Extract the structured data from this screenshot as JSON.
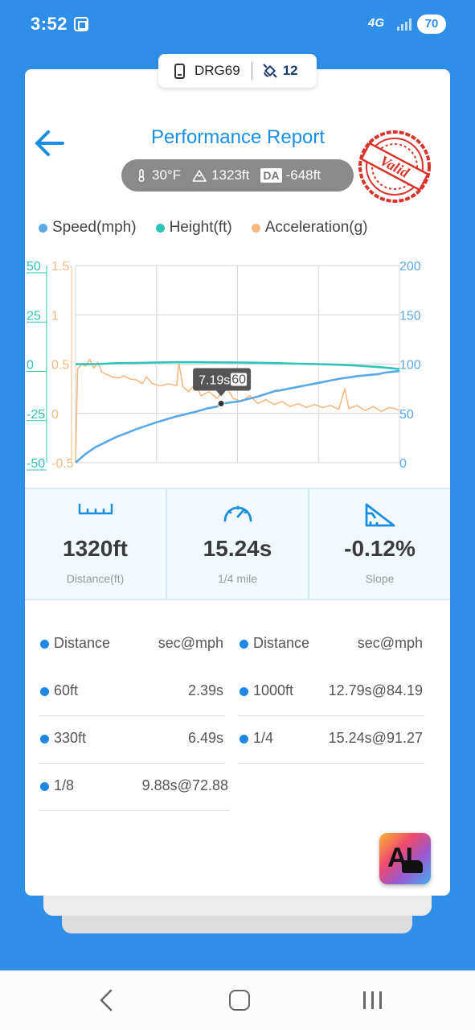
{
  "status_bar": {
    "time": "3:52",
    "network": "4G",
    "battery": "70"
  },
  "device": {
    "name": "DRG69",
    "satellites": "12"
  },
  "header": {
    "title": "Performance Report",
    "temperature": "30°F",
    "elevation": "1323ft",
    "da_label": "DA",
    "density_altitude": "-648ft",
    "stamp_text": "Valid"
  },
  "legend": [
    {
      "label": "Speed(mph)",
      "color": "#5aa9e6"
    },
    {
      "label": "Height(ft)",
      "color": "#2ec4b6"
    },
    {
      "label": "Acceleration(g)",
      "color": "#f5b982"
    }
  ],
  "chart_data": {
    "type": "line",
    "x": {
      "domain": [
        0,
        16
      ]
    },
    "y_axes": {
      "height_ticks": [
        "50",
        "25",
        "0",
        "-25",
        "-50"
      ],
      "height_ylim": [
        -50,
        50
      ],
      "accel_ticks": [
        "1.5",
        "1",
        "0.5",
        "0",
        "-0.5"
      ],
      "accel_ylim": [
        -0.5,
        1.5
      ],
      "speed_ticks": [
        "200",
        "150",
        "100",
        "50",
        "0"
      ],
      "speed_ylim": [
        0,
        200
      ]
    },
    "grid": true,
    "tooltip": {
      "time": "7.19s",
      "value": "60",
      "x": 7.19,
      "y_speed": 60
    },
    "series": [
      {
        "name": "Speed(mph)",
        "axis": "speed",
        "color": "#5aa9e6",
        "points": [
          [
            0,
            0
          ],
          [
            0.5,
            9
          ],
          [
            1,
            16
          ],
          [
            2,
            26
          ],
          [
            2.39,
            29
          ],
          [
            3,
            34
          ],
          [
            4,
            41
          ],
          [
            5,
            47
          ],
          [
            6,
            52
          ],
          [
            6.49,
            55
          ],
          [
            7,
            57
          ],
          [
            7.19,
            60
          ],
          [
            8,
            62
          ],
          [
            9,
            67
          ],
          [
            9.88,
            72.88
          ],
          [
            10,
            73
          ],
          [
            11,
            77
          ],
          [
            12,
            81
          ],
          [
            12.79,
            84.19
          ],
          [
            13,
            85
          ],
          [
            14,
            88
          ],
          [
            15,
            90
          ],
          [
            15.24,
            91.27
          ],
          [
            16,
            93
          ]
        ]
      },
      {
        "name": "Height(ft)",
        "axis": "height",
        "color": "#2ec4b6",
        "points": [
          [
            0,
            0
          ],
          [
            1,
            0
          ],
          [
            2,
            0.5
          ],
          [
            3,
            0.6
          ],
          [
            4,
            0.8
          ],
          [
            5,
            1
          ],
          [
            6,
            1
          ],
          [
            7,
            0.9
          ],
          [
            8,
            0.8
          ],
          [
            9,
            0.7
          ],
          [
            10,
            0.5
          ],
          [
            11,
            0.2
          ],
          [
            12,
            0
          ],
          [
            13,
            -0.3
          ],
          [
            14,
            -0.8
          ],
          [
            15,
            -1.5
          ],
          [
            16,
            -2.5
          ]
        ]
      },
      {
        "name": "Acceleration(g)",
        "axis": "accel",
        "color": "#f5b982",
        "points": [
          [
            0,
            -0.5
          ],
          [
            0.1,
            0.45
          ],
          [
            0.3,
            0.5
          ],
          [
            0.5,
            0.48
          ],
          [
            0.7,
            0.55
          ],
          [
            0.9,
            0.46
          ],
          [
            1.1,
            0.52
          ],
          [
            1.3,
            0.42
          ],
          [
            1.5,
            0.4
          ],
          [
            1.8,
            0.37
          ],
          [
            2.1,
            0.36
          ],
          [
            2.4,
            0.38
          ],
          [
            2.7,
            0.35
          ],
          [
            3,
            0.34
          ],
          [
            3.3,
            0.3
          ],
          [
            3.5,
            0.37
          ],
          [
            3.8,
            0.3
          ],
          [
            4.2,
            0.28
          ],
          [
            4.6,
            0.3
          ],
          [
            5,
            0.28
          ],
          [
            5.1,
            0.52
          ],
          [
            5.3,
            0.27
          ],
          [
            5.6,
            0.22
          ],
          [
            5.9,
            0.3
          ],
          [
            6.2,
            0.18
          ],
          [
            6.6,
            0.22
          ],
          [
            7,
            0.15
          ],
          [
            7.4,
            0.28
          ],
          [
            7.8,
            0.15
          ],
          [
            8.2,
            0.12
          ],
          [
            8.6,
            0.18
          ],
          [
            9,
            0.1
          ],
          [
            9.4,
            0.14
          ],
          [
            9.8,
            0.09
          ],
          [
            10.2,
            0.12
          ],
          [
            10.6,
            0.07
          ],
          [
            11,
            0.1
          ],
          [
            11.4,
            0.06
          ],
          [
            11.8,
            0.09
          ],
          [
            12.2,
            0.06
          ],
          [
            12.6,
            0.08
          ],
          [
            13,
            0.04
          ],
          [
            13.3,
            0.25
          ],
          [
            13.5,
            0.05
          ],
          [
            13.9,
            0.08
          ],
          [
            14.3,
            0.03
          ],
          [
            14.7,
            0.07
          ],
          [
            15.1,
            0.02
          ],
          [
            15.5,
            0.06
          ],
          [
            15.9,
            0.04
          ],
          [
            16,
            0.03
          ]
        ]
      }
    ]
  },
  "stats": [
    {
      "value": "1320ft",
      "label": "Distance(ft)",
      "icon": "ruler-icon"
    },
    {
      "value": "15.24s",
      "label": "1/4 mile",
      "icon": "speedometer-icon"
    },
    {
      "value": "-0.12%",
      "label": "Slope",
      "icon": "slope-icon"
    }
  ],
  "results": {
    "header": {
      "distance": "Distance",
      "unit": "sec@mph"
    },
    "left": [
      {
        "distance": "60ft",
        "value": "2.39s"
      },
      {
        "distance": "330ft",
        "value": "6.49s"
      },
      {
        "distance": "1/8",
        "value": "9.88s@72.88"
      }
    ],
    "right": [
      {
        "distance": "1000ft",
        "value": "12.79s@84.19"
      },
      {
        "distance": "1/4",
        "value": "15.24s@91.27"
      }
    ]
  },
  "ai_button": {
    "label": "AI"
  }
}
